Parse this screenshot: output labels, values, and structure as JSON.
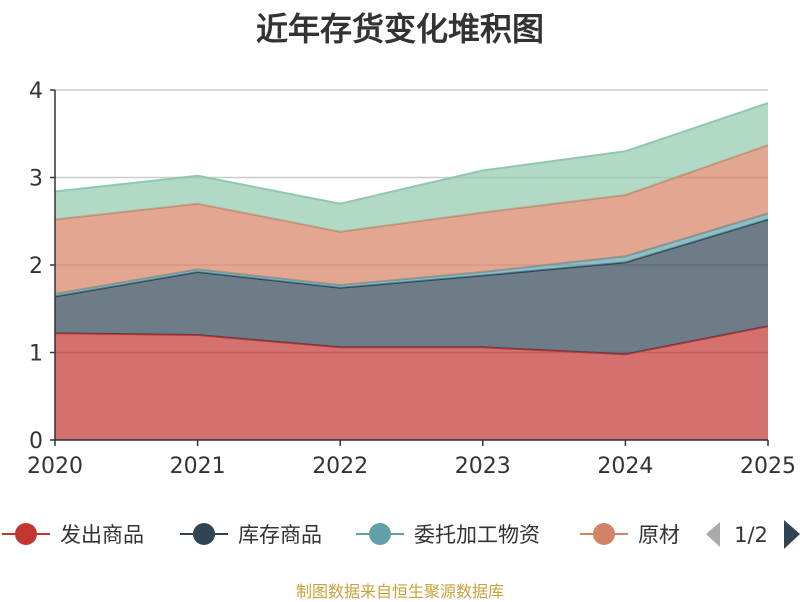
{
  "chart_data": {
    "type": "area",
    "stacked": true,
    "title": "近年存货变化堆积图",
    "x": [
      "2020",
      "2021",
      "2022",
      "2023",
      "2024",
      "2025"
    ],
    "ylim": [
      0,
      4
    ],
    "yticks": [
      0,
      1,
      2,
      3,
      4
    ],
    "grid": true,
    "series": [
      {
        "name": "发出商品",
        "color": "#c23531",
        "values": [
          1.22,
          1.2,
          1.06,
          1.06,
          0.98,
          1.3
        ]
      },
      {
        "name": "库存商品",
        "color": "#2f4554",
        "values": [
          0.42,
          0.72,
          0.68,
          0.82,
          1.05,
          1.22
        ]
      },
      {
        "name": "委托加工物资",
        "color": "#61a0a8",
        "values": [
          0.03,
          0.03,
          0.03,
          0.04,
          0.07,
          0.07
        ]
      },
      {
        "name": "原材料",
        "color": "#d48265",
        "values": [
          0.85,
          0.75,
          0.61,
          0.68,
          0.7,
          0.78
        ]
      },
      {
        "name": "",
        "color": "#91c7ae",
        "values": [
          0.32,
          0.32,
          0.32,
          0.48,
          0.5,
          0.48
        ]
      }
    ],
    "legend": {
      "position": "bottom",
      "visible_labels": [
        "发出商品",
        "库存商品",
        "委托加工物资",
        "原材"
      ],
      "page": "1/2"
    }
  },
  "footer": {
    "credit": "制图数据来自恒生聚源数据库"
  }
}
